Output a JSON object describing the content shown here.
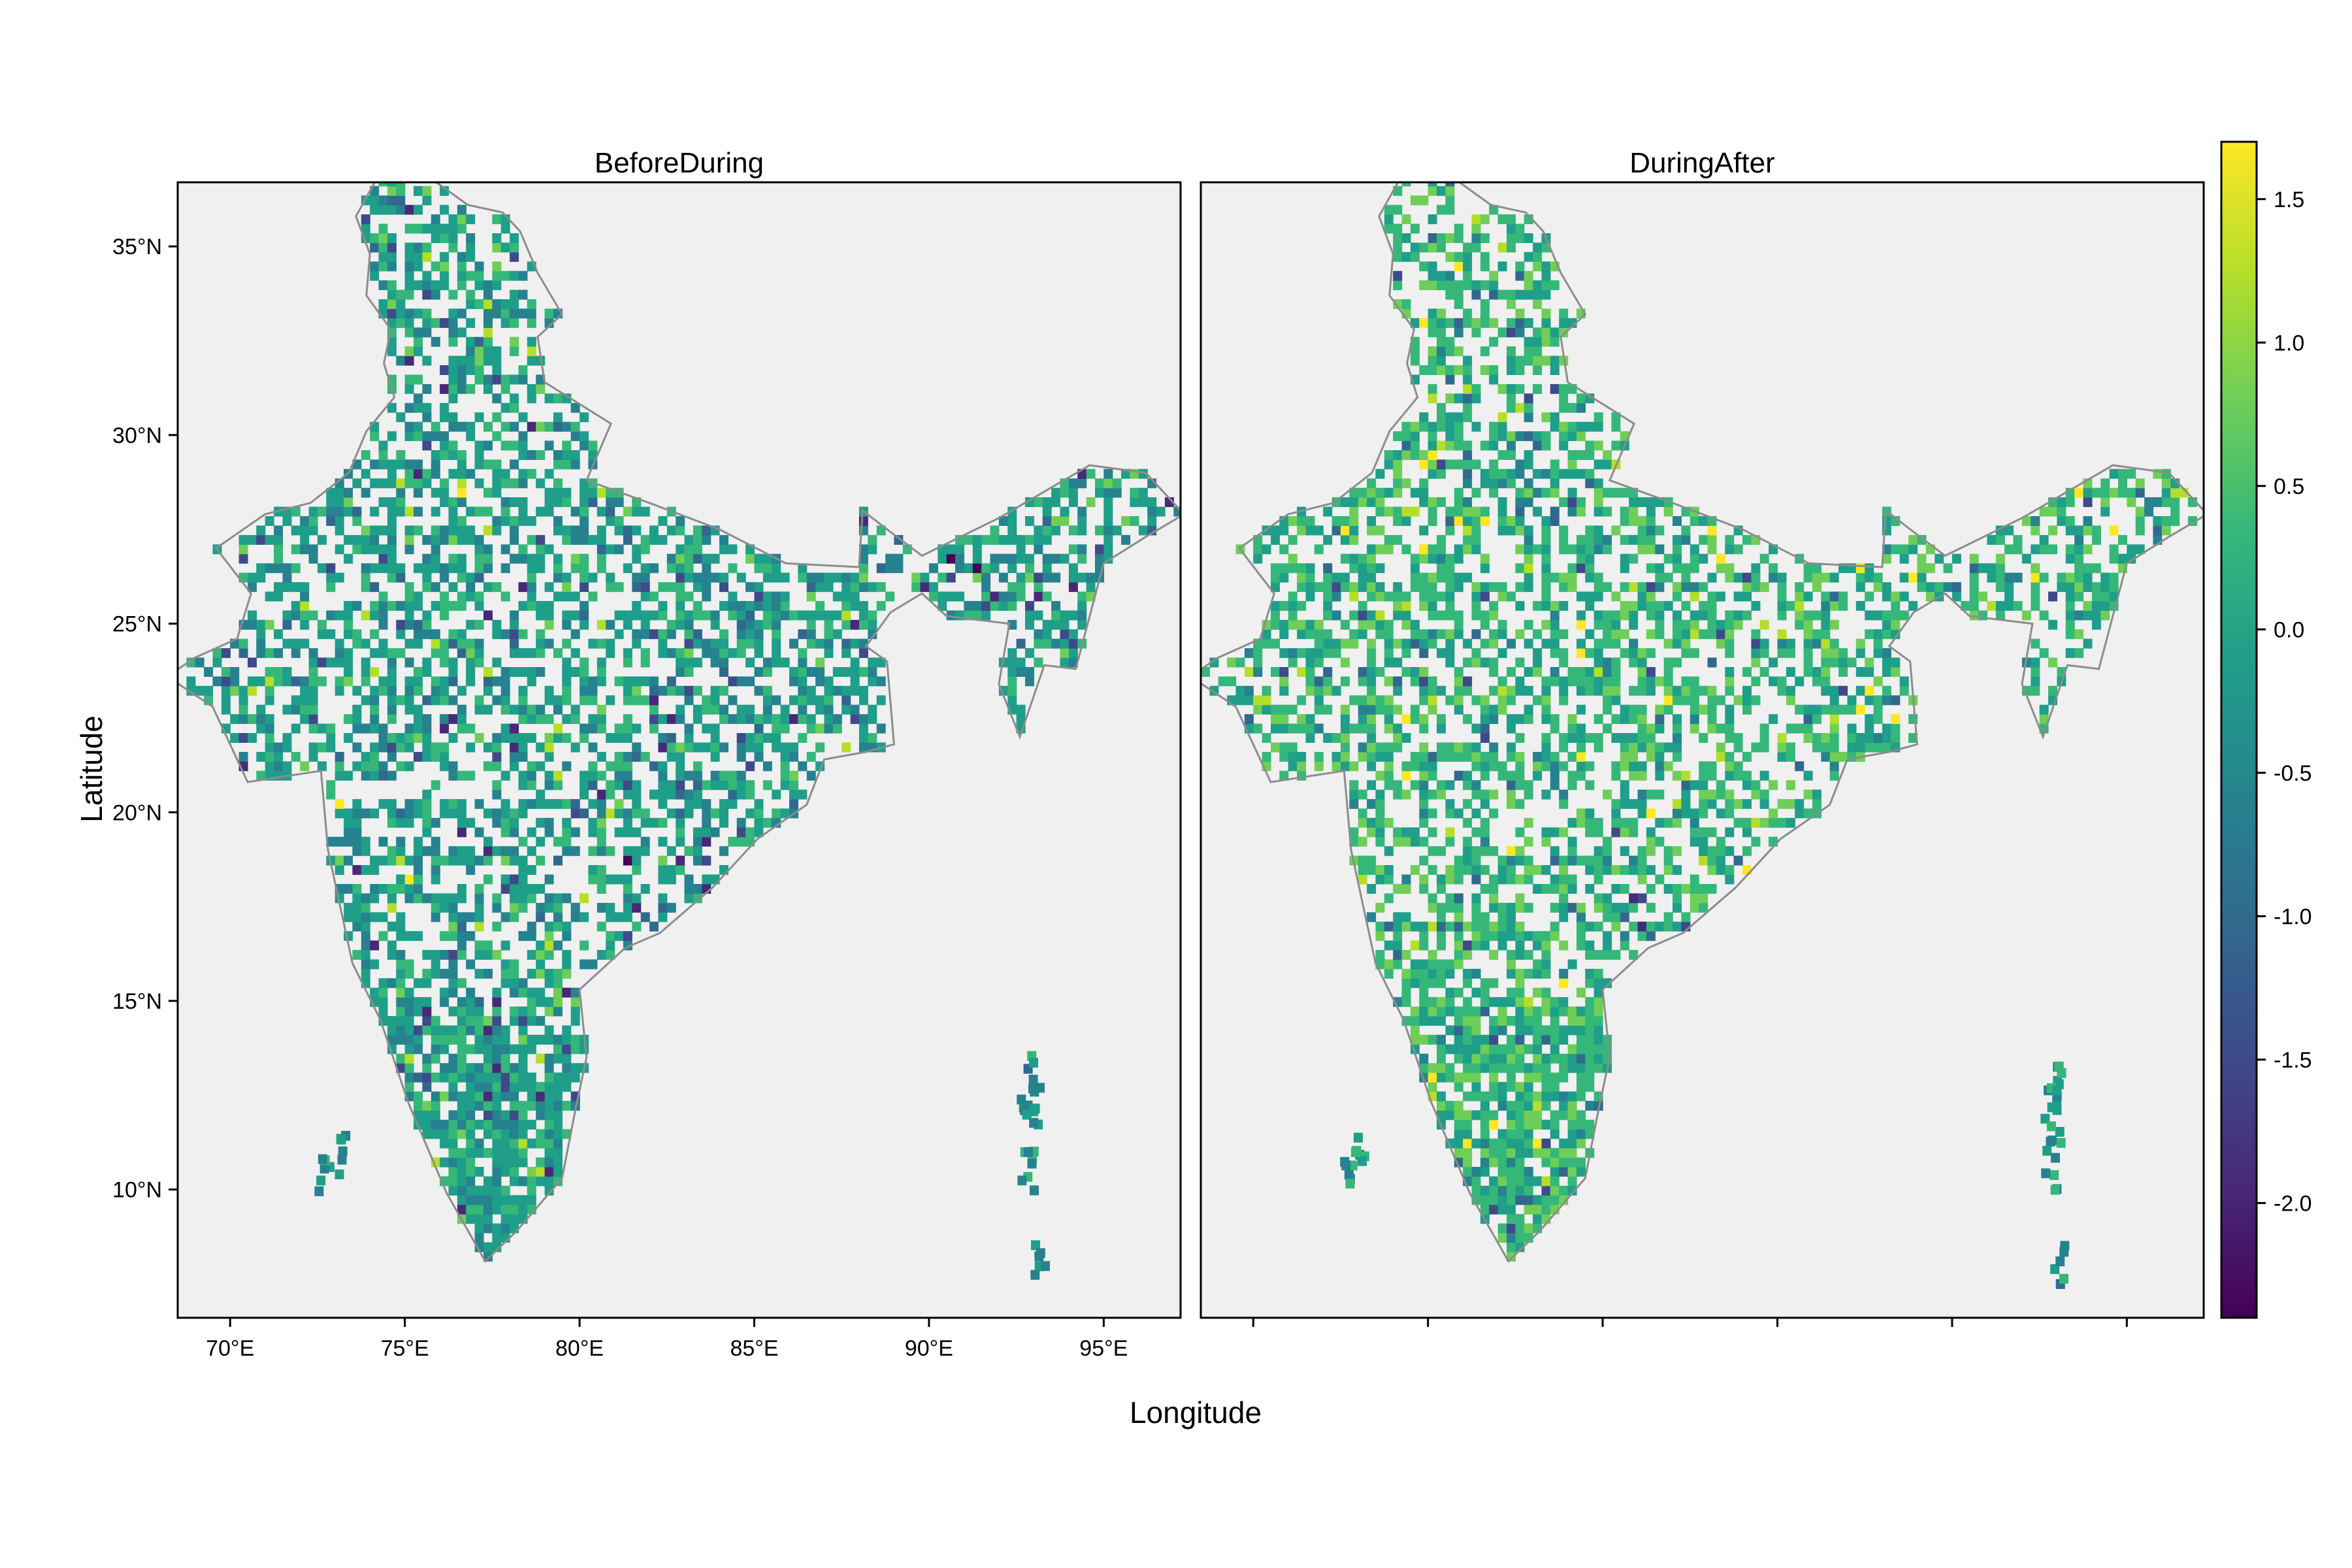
{
  "chart_data": [
    {
      "type": "heatmap",
      "title": "BeforeDuring",
      "xlabel": "Longitude",
      "ylabel": "Latitude",
      "xlim": [
        68.5,
        97.2
      ],
      "ylim": [
        6.6,
        36.7
      ],
      "x_ticks": [
        70,
        75,
        80,
        85,
        90,
        95
      ],
      "x_tick_labels": [
        "70°E",
        "75°E",
        "80°E",
        "85°E",
        "90°E",
        "95°E"
      ],
      "y_ticks": [
        10,
        15,
        20,
        25,
        30,
        35
      ],
      "y_tick_labels": [
        "10°N",
        "15°N",
        "20°N",
        "25°N",
        "30°N",
        "35°N"
      ],
      "value_summary": "Gridded cells over India; most values between -0.5 and 0.5 (teal-green); scattered negative cells (-1.0 to -2.0) in central India and south; few positives up to ~1.0."
    },
    {
      "type": "heatmap",
      "title": "DuringAfter",
      "xlabel": "Longitude",
      "ylabel": "Latitude",
      "xlim": [
        68.5,
        97.2
      ],
      "ylim": [
        6.6,
        36.7
      ],
      "x_ticks": [
        70,
        75,
        80,
        85,
        90,
        95
      ],
      "x_tick_labels": [
        "",
        "",
        "",
        "",
        "",
        ""
      ],
      "value_summary": "Gridded cells over India; mostly -0.5 to 0.5 with more positive (yellow-green, up to ~1.3) cells in central and south India; few negatives."
    }
  ],
  "colorbar": {
    "palette": "viridis",
    "range": [
      -2.4,
      1.7
    ],
    "ticks": [
      -2.0,
      -1.5,
      -1.0,
      -0.5,
      0.0,
      0.5,
      1.0,
      1.5
    ],
    "tick_labels": [
      "-2.0",
      "-1.5",
      "-1.0",
      "-0.5",
      "0.0",
      "0.5",
      "1.0",
      "1.5"
    ]
  },
  "colors": {
    "panel_bg": "#f0f0f0",
    "boundary": "#8c8c8c",
    "viridis": [
      "#440154",
      "#482878",
      "#3e4a89",
      "#31688e",
      "#26828e",
      "#1f9e89",
      "#35b779",
      "#6ece58",
      "#b5de2b",
      "#fde725"
    ]
  }
}
